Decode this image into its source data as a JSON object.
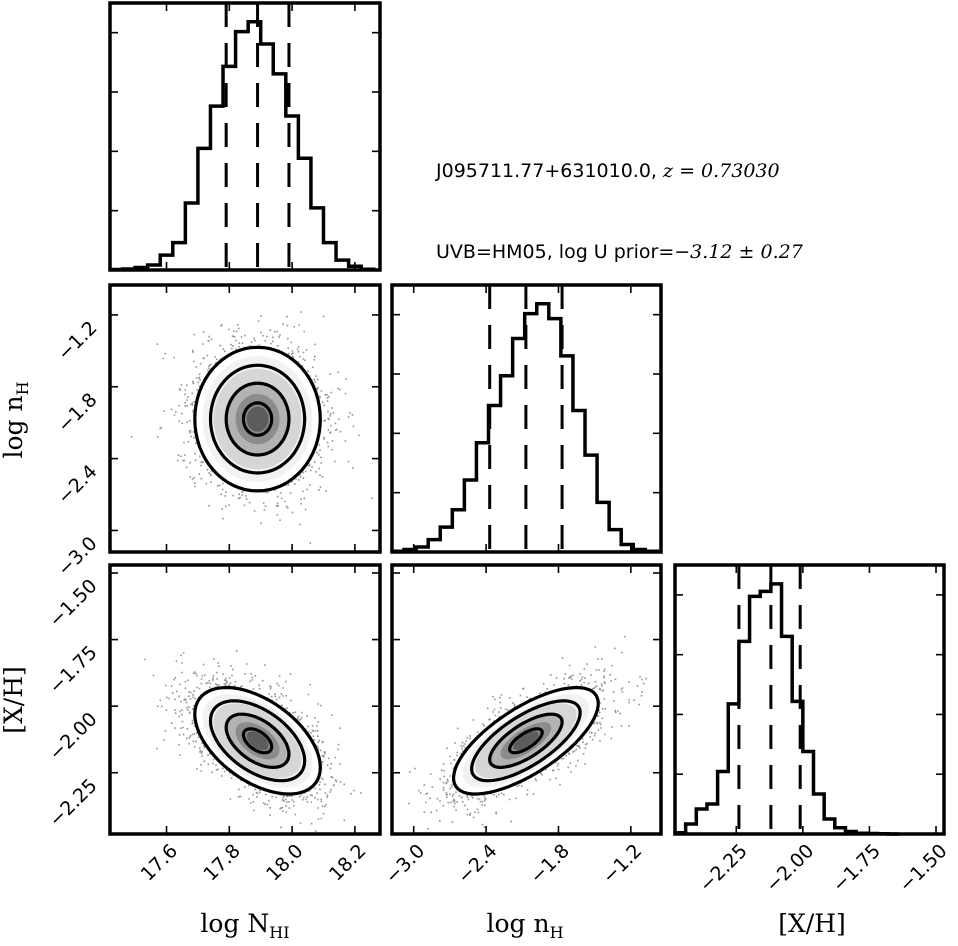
{
  "annotation": {
    "line1_text": "J095711.77+631010.0, ",
    "line1_math": "z = 0.73030",
    "line2_text": "UVB=HM05, log U prior=",
    "line2_math": "−3.12 ± 0.27"
  },
  "axis_labels": {
    "x_nhi": "log N",
    "x_nhi_sub": "HI",
    "x_nh": "log n",
    "x_nh_sub": "H",
    "x_xh": "[X/H]",
    "y_nh": "log n",
    "y_nh_sub": "H",
    "y_xh": "[X/H]"
  },
  "chart_data": {
    "type": "corner",
    "parameters": [
      "log N_HI",
      "log n_H",
      "[X/H]"
    ],
    "ranges": {
      "nhi": [
        17.42,
        18.28
      ],
      "nh": [
        -3.18,
        -0.95
      ],
      "xh": [
        -2.48,
        -1.47
      ]
    },
    "ticks": {
      "nhi": [
        "17.6",
        "17.8",
        "18.0",
        "18.2"
      ],
      "nhi_values": [
        17.6,
        17.8,
        18.0,
        18.2
      ],
      "nh": [
        "−3.0",
        "−2.4",
        "−1.8",
        "−1.2"
      ],
      "nh_values": [
        -3.0,
        -2.4,
        -1.8,
        -1.2
      ],
      "xh": [
        "−2.25",
        "−2.00",
        "−1.75",
        "−1.50"
      ],
      "xh_values": [
        -2.25,
        -2.0,
        -1.75,
        -1.5
      ]
    },
    "histograms": [
      {
        "param": "log N_HI",
        "bin_edges": [
          17.42,
          17.46,
          17.5,
          17.54,
          17.58,
          17.62,
          17.66,
          17.7,
          17.74,
          17.78,
          17.82,
          17.86,
          17.9,
          17.94,
          17.98,
          18.02,
          18.06,
          18.1,
          18.14,
          18.18,
          18.22,
          18.26
        ],
        "counts": [
          0.002,
          0.004,
          0.01,
          0.02,
          0.06,
          0.11,
          0.27,
          0.49,
          0.66,
          0.82,
          0.96,
          1.0,
          0.91,
          0.79,
          0.62,
          0.45,
          0.25,
          0.11,
          0.04,
          0.015,
          0.003
        ],
        "quantiles": [
          17.79,
          17.89,
          17.99
        ]
      },
      {
        "param": "log n_H",
        "bin_edges": [
          -3.18,
          -3.08,
          -2.98,
          -2.88,
          -2.78,
          -2.68,
          -2.58,
          -2.48,
          -2.38,
          -2.28,
          -2.18,
          -2.08,
          -1.98,
          -1.88,
          -1.78,
          -1.68,
          -1.58,
          -1.48,
          -1.38,
          -1.28,
          -1.18,
          -1.08,
          -0.98
        ],
        "counts": [
          0.003,
          0.01,
          0.02,
          0.05,
          0.1,
          0.17,
          0.29,
          0.44,
          0.59,
          0.71,
          0.86,
          0.96,
          1.0,
          0.94,
          0.79,
          0.57,
          0.39,
          0.2,
          0.09,
          0.03,
          0.01,
          0.003
        ],
        "quantiles": [
          -2.37,
          -2.07,
          -1.77
        ]
      },
      {
        "param": "[X/H]",
        "bin_edges": [
          -2.48,
          -2.44,
          -2.4,
          -2.36,
          -2.32,
          -2.28,
          -2.24,
          -2.2,
          -2.16,
          -2.12,
          -2.08,
          -2.04,
          -2.0,
          -1.96,
          -1.92,
          -1.88,
          -1.84,
          -1.8,
          -1.76,
          -1.72,
          -1.68,
          -1.64
        ],
        "counts": [
          0.005,
          0.04,
          0.1,
          0.12,
          0.25,
          0.52,
          0.77,
          0.95,
          0.97,
          1.0,
          0.79,
          0.53,
          0.33,
          0.16,
          0.06,
          0.025,
          0.01,
          0.003,
          0.002,
          0.001,
          0.0
        ],
        "quantiles": [
          -2.24,
          -2.12,
          -2.01
        ]
      }
    ],
    "joint": [
      {
        "x": "log N_HI",
        "y": "log n_H",
        "center": [
          17.89,
          -2.07
        ],
        "sigma": [
          0.1,
          0.3
        ],
        "rho": 0.0
      },
      {
        "x": "log N_HI",
        "y": "[X/H]",
        "center": [
          17.89,
          -2.13
        ],
        "sigma": [
          0.1,
          0.1
        ],
        "rho": -0.5
      },
      {
        "x": "log n_H",
        "y": "[X/H]",
        "center": [
          -2.07,
          -2.13
        ],
        "sigma": [
          0.3,
          0.1
        ],
        "rho": 0.7
      }
    ]
  }
}
